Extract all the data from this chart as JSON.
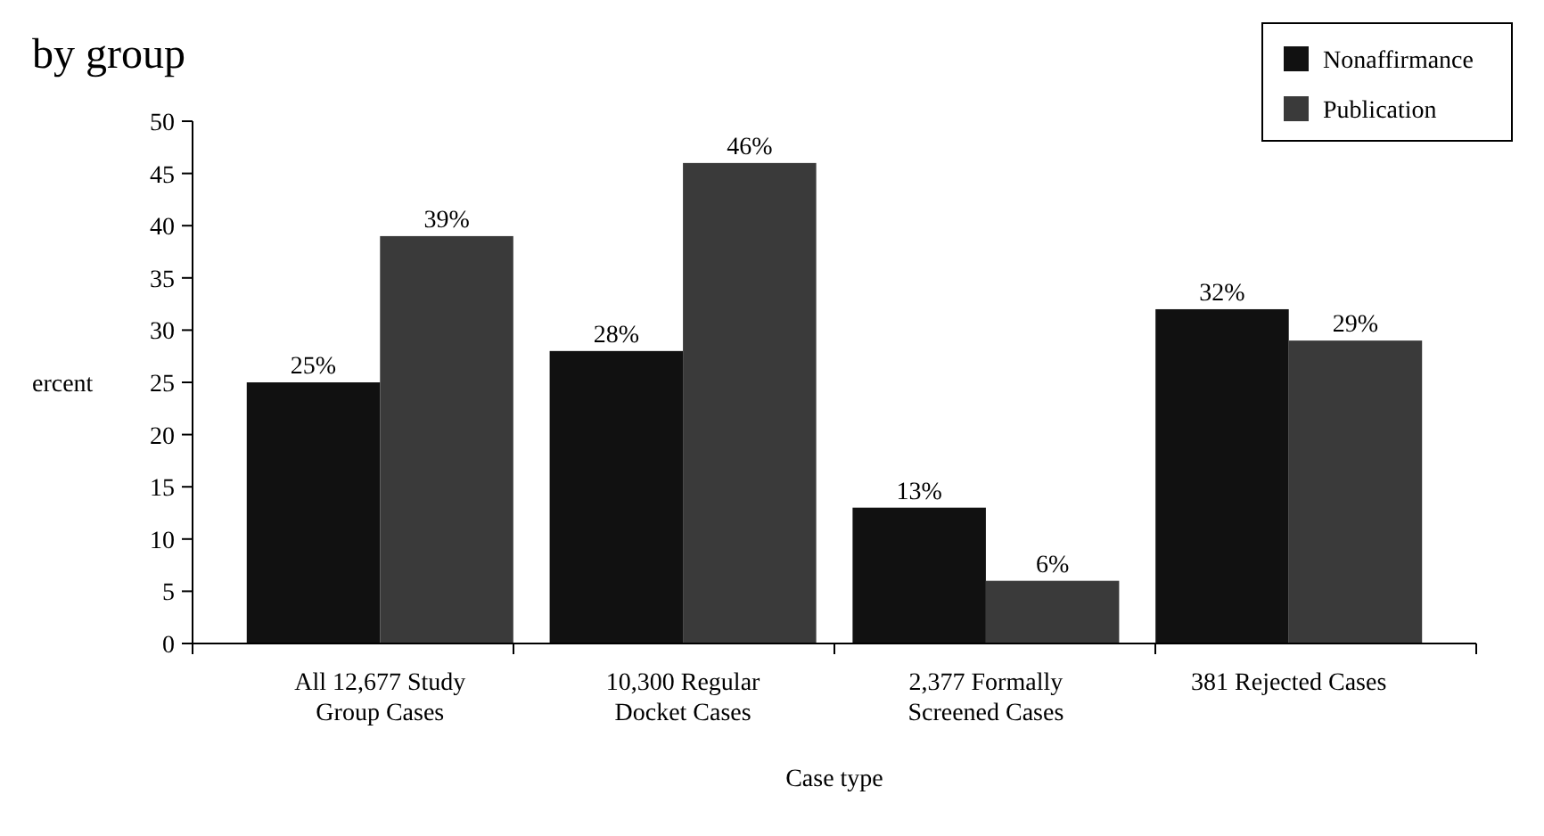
{
  "chart_data": {
    "type": "bar",
    "title": "by group",
    "xlabel": "Case type",
    "ylabel": "ercent",
    "categories": [
      "All 12,677 Study\nGroup Cases",
      "10,300 Regular\nDocket Cases",
      "2,377 Formally\nScreened Cases",
      "381 Rejected Cases"
    ],
    "series": [
      {
        "name": "Nonaffirmance",
        "color": "#111111",
        "values": [
          25,
          28,
          13,
          32
        ]
      },
      {
        "name": "Publication",
        "color": "#3a3a3a",
        "values": [
          39,
          46,
          6,
          29
        ]
      }
    ],
    "ylim": [
      0,
      50
    ],
    "yticks": [
      0,
      5,
      10,
      15,
      20,
      25,
      30,
      35,
      40,
      45,
      50
    ],
    "value_labels": [
      [
        "25%",
        "28%",
        "13%",
        "32%"
      ],
      [
        "39%",
        "46%",
        "6%",
        "29%"
      ]
    ],
    "legend": "top right",
    "grid": false
  }
}
